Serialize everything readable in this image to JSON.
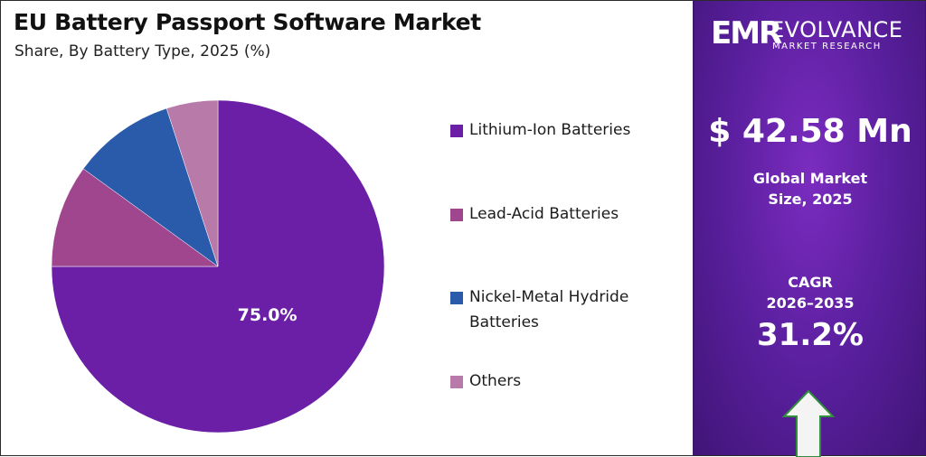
{
  "chart_data": {
    "type": "pie",
    "title": "EU Battery Passport Software Market",
    "subtitle": "Share, By Battery Type, 2025 (%)",
    "start_angle_deg": 0,
    "direction": "clockwise",
    "slices": [
      {
        "label": "Lithium-Ion Batteries",
        "value": 75.0,
        "color": "#6a1fa6",
        "data_label": "75.0%"
      },
      {
        "label": "Lead-Acid Batteries",
        "value": 10.0,
        "color": "#a0468f",
        "data_label": ""
      },
      {
        "label": "Nickel-Metal Hydride Batteries",
        "value": 10.0,
        "color": "#2a5bab",
        "data_label": ""
      },
      {
        "label": "Others",
        "value": 5.0,
        "color": "#b87aa8",
        "data_label": ""
      }
    ],
    "legend_position": "right"
  },
  "panel": {
    "logo": {
      "mark": "EMR",
      "name": "EVOLVANCE",
      "sub": "MARKET RESEARCH"
    },
    "market_value": "$ 42.58 Mn",
    "market_caption_line1": "Global Market",
    "market_caption_line2": "Size, 2025",
    "cagr_label": "CAGR",
    "cagr_period": "2026–2035",
    "cagr_value": "31.2%",
    "arrow_icon": "up-arrow-icon"
  }
}
